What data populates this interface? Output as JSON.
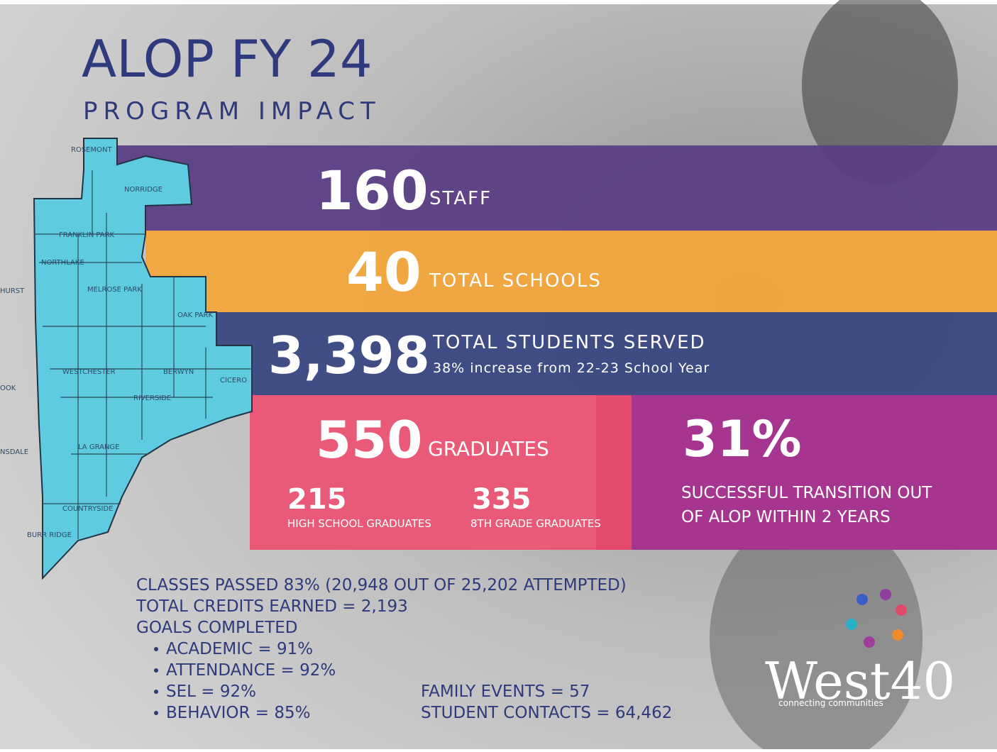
{
  "header": {
    "title": "ALOP FY 24",
    "subtitle": "PROGRAM IMPACT"
  },
  "map": {
    "labels": [
      "ROSEMONT",
      "NORRIDGE",
      "FRANKLIN PARK",
      "NORTHLAKE",
      "HURST",
      "MELROSE PARK",
      "OAK PARK",
      "WESTCHESTER",
      "BERWYN",
      "CICERO",
      "OOK",
      "RIVERSIDE",
      "LA GRANGE",
      "NSDALE",
      "COUNTRYSIDE",
      "BURR RIDGE"
    ]
  },
  "stats": {
    "staff": {
      "number": "160",
      "label": "STAFF"
    },
    "schools": {
      "number": "40",
      "label": "TOTAL SCHOOLS"
    },
    "students": {
      "number": "3,398",
      "label": "TOTAL STUDENTS SERVED",
      "note": "38% increase from 22-23 School Year"
    },
    "graduates": {
      "number": "550",
      "label": "GRADUATES",
      "high_school": {
        "number": "215",
        "label": "HIGH SCHOOL GRADUATES"
      },
      "eighth_grade": {
        "number": "335",
        "label": "8TH GRADE GRADUATES"
      }
    },
    "transition": {
      "number": "31%",
      "lines": [
        "SUCCESSFUL TRANSITION OUT",
        "OF ALOP WITHIN 2 YEARS"
      ]
    }
  },
  "details": {
    "lines": [
      "CLASSES PASSED 83% (20,948 OUT OF 25,202 ATTEMPTED)",
      "TOTAL CREDITS EARNED = 2,193",
      "GOALS COMPLETED"
    ],
    "goals": [
      "ACADEMIC = 91%",
      "ATTENDANCE = 92%",
      "SEL = 92%",
      "BEHAVIOR = 85%"
    ],
    "other": [
      "FAMILY EVENTS = 57",
      "STUDENT CONTACTS = 64,462"
    ]
  },
  "logo": {
    "name": "West40",
    "tagline": "connecting communities"
  }
}
